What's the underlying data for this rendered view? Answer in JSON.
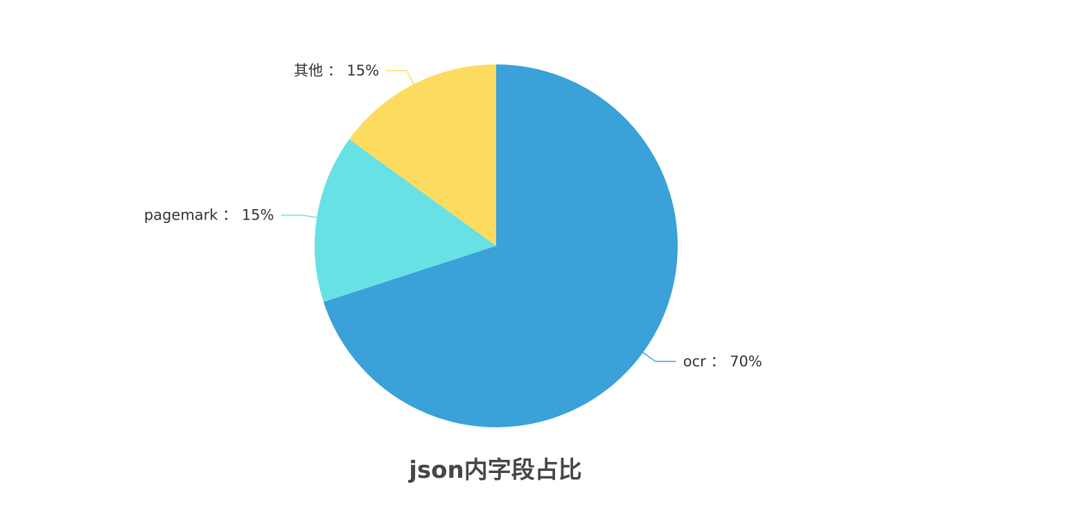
{
  "chart_data": {
    "type": "pie",
    "title": "json内字段占比",
    "label_separator": "：",
    "slices": [
      {
        "name": "ocr",
        "value": 70,
        "display": "70%",
        "color": "#3aa1d9"
      },
      {
        "name": "pagemark",
        "value": 15,
        "display": "15%",
        "color": "#68e1e4"
      },
      {
        "name": "其他",
        "value": 15,
        "display": "15%",
        "color": "#fddb5f"
      }
    ]
  }
}
